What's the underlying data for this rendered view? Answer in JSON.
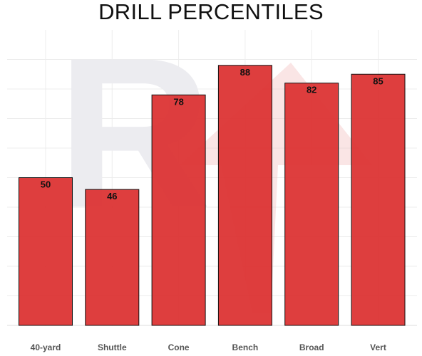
{
  "chart_data": {
    "type": "bar",
    "title": "DRILL PERCENTILES",
    "categories": [
      "40-yard",
      "Shuttle",
      "Cone",
      "Bench",
      "Broad",
      "Vert"
    ],
    "values": [
      50,
      46,
      78,
      88,
      82,
      85
    ],
    "data_labels": [
      "50",
      "46",
      "78",
      "88",
      "82",
      "85"
    ],
    "xlabel": "",
    "ylabel": "",
    "ylim": [
      0,
      100
    ],
    "grid": true,
    "legend": "none",
    "bar_color": "#dc3232",
    "bar_edge_color": "#111111",
    "watermark": "RW logo"
  }
}
